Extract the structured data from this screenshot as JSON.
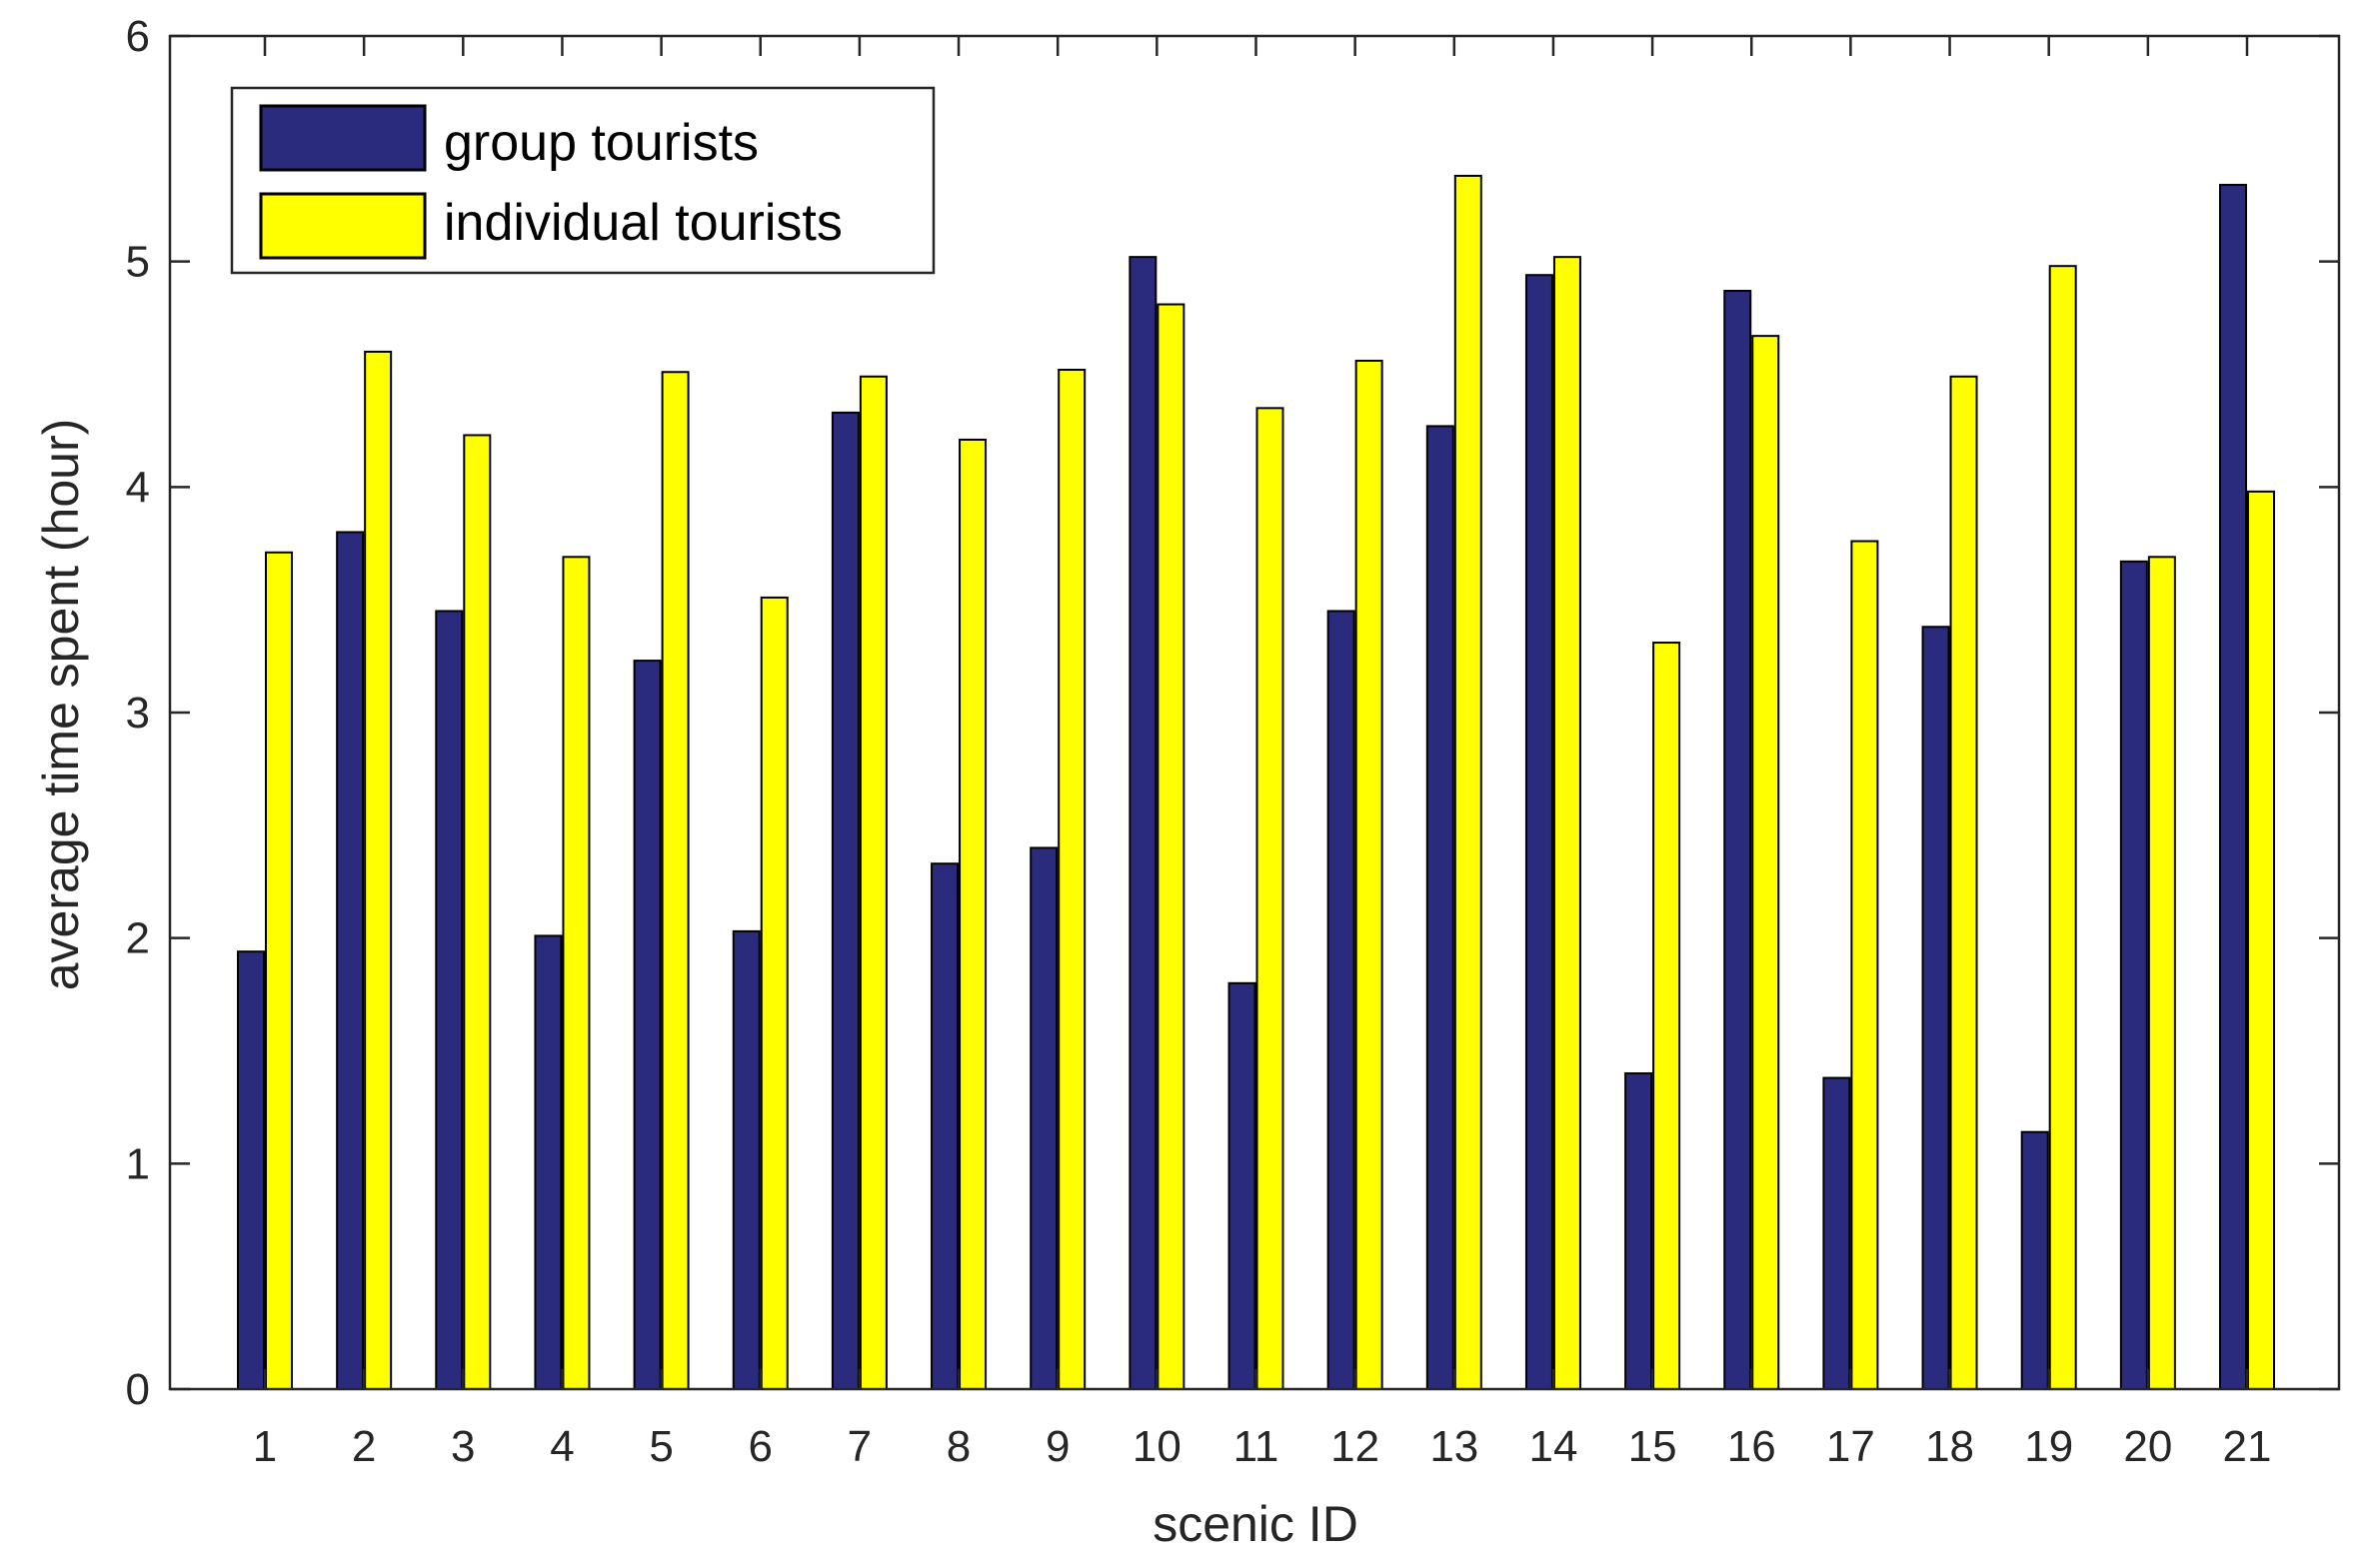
{
  "colors": {
    "group": "#2b2b7e",
    "individual": "#ffff00",
    "stroke": "#000000",
    "axis": "#262626"
  },
  "chart_data": {
    "type": "bar",
    "xlabel": "scenic ID",
    "ylabel": "average time spent (hour)",
    "ylim": [
      0,
      6
    ],
    "yticks": [
      0,
      1,
      2,
      3,
      4,
      5,
      6
    ],
    "categories": [
      "1",
      "2",
      "3",
      "4",
      "5",
      "6",
      "7",
      "8",
      "9",
      "10",
      "11",
      "12",
      "13",
      "14",
      "15",
      "16",
      "17",
      "18",
      "19",
      "20",
      "21"
    ],
    "legend_position": "top-left",
    "grid": false,
    "series": [
      {
        "name": "group tourists",
        "color": "#2b2b7e",
        "values": [
          1.94,
          3.8,
          3.45,
          2.01,
          3.23,
          2.03,
          4.33,
          2.33,
          2.4,
          5.02,
          1.8,
          3.45,
          4.27,
          4.94,
          1.4,
          4.87,
          1.38,
          3.38,
          1.14,
          3.67,
          5.34
        ]
      },
      {
        "name": "individual tourists",
        "color": "#ffff00",
        "values": [
          3.71,
          4.6,
          4.23,
          3.69,
          4.51,
          3.51,
          4.49,
          4.21,
          4.52,
          4.81,
          4.35,
          4.56,
          5.38,
          5.02,
          3.31,
          4.67,
          3.76,
          4.49,
          4.98,
          3.69,
          3.98
        ]
      }
    ]
  }
}
